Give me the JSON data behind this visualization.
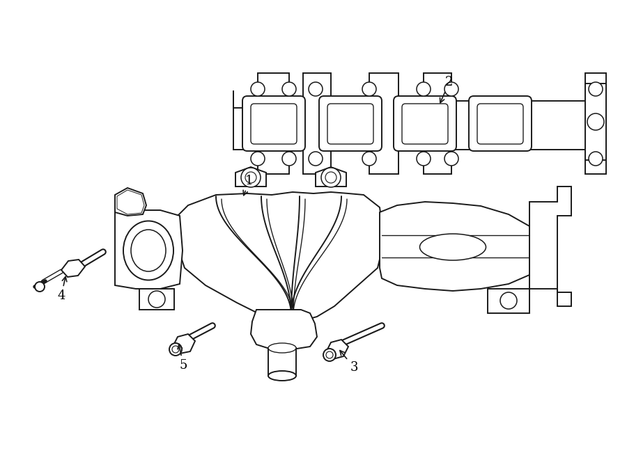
{
  "bg_color": "#ffffff",
  "line_color": "#1a1a1a",
  "lw": 1.4,
  "fig_w": 9.0,
  "fig_h": 6.61,
  "dpi": 100,
  "xlim": [
    0,
    900
  ],
  "ylim": [
    0,
    661
  ]
}
